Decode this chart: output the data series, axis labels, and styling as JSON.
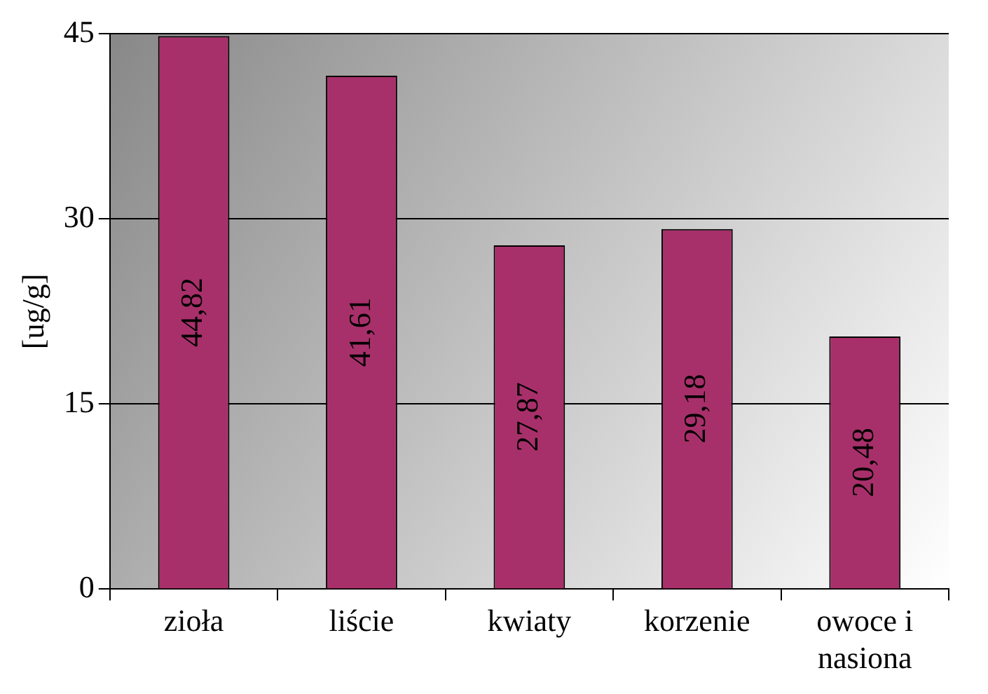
{
  "chart_data": {
    "type": "bar",
    "ylabel": "[ug/g]",
    "categories": [
      "zioła",
      "liście",
      "kwiaty",
      "korzenie",
      "owoce i nasiona"
    ],
    "values": [
      44.82,
      41.61,
      27.87,
      29.18,
      20.48
    ],
    "value_labels": [
      "44,82",
      "41,61",
      "27,87",
      "29,18",
      "20,48"
    ],
    "color": "#a8306a",
    "ylim": [
      0,
      45
    ],
    "yticks": [
      0,
      15,
      30,
      45
    ],
    "grid": "y",
    "legend": false
  }
}
